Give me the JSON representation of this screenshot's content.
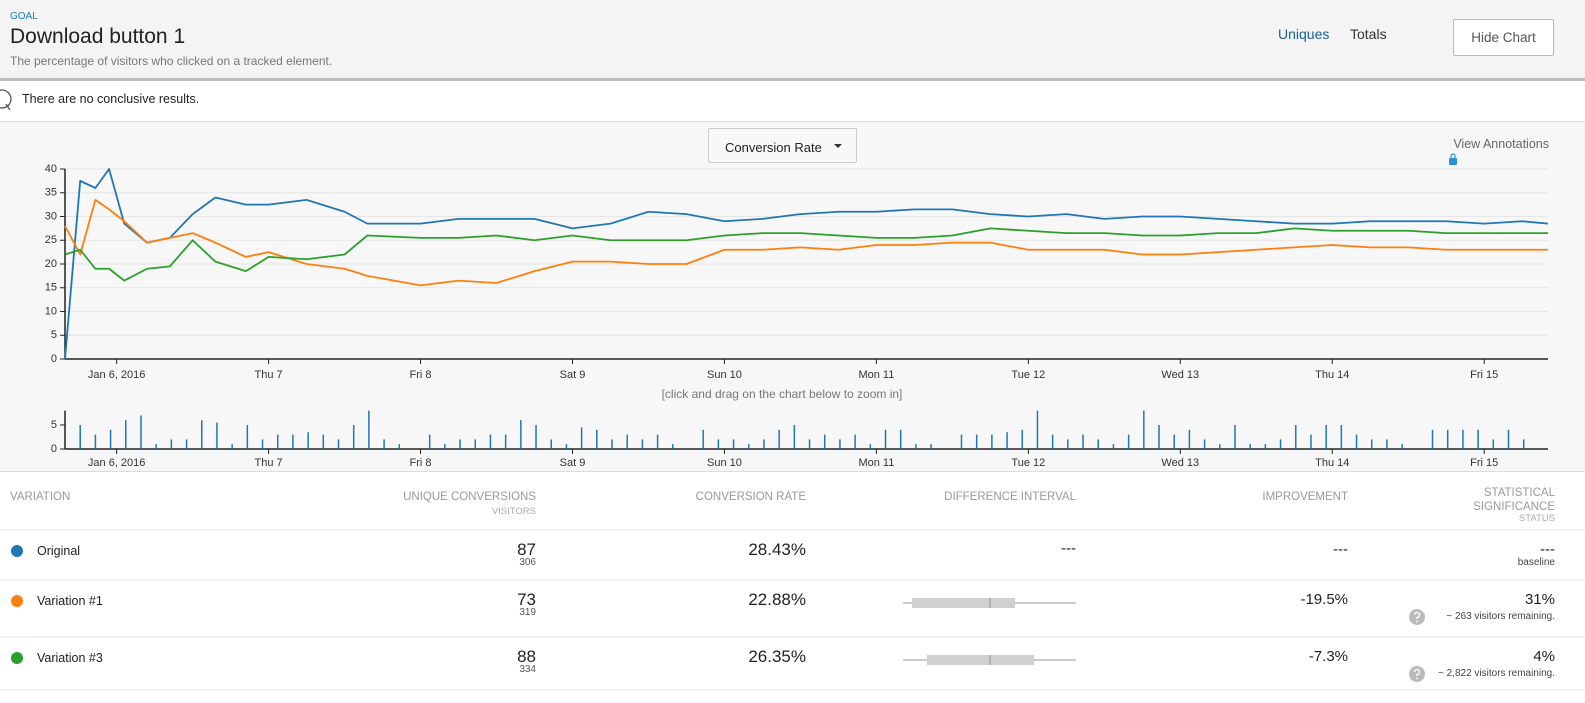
{
  "header": {
    "label": "GOAL",
    "title": "Download button 1",
    "description": "The percentage of visitors who clicked on a tracked element.",
    "tabs": [
      "Uniques",
      "Totals"
    ],
    "button": "Hide Chart"
  },
  "status_message": "There are no conclusive results.",
  "metric_dropdown": "Conversion Rate",
  "annotations_link": "View Annotations",
  "zoom_hint": "[click and drag on the chart below to zoom in]",
  "chart_data": [
    {
      "type": "line",
      "x": [
        -0.34,
        -0.24,
        -0.14,
        -0.05,
        0.05,
        0.2,
        0.35,
        0.5,
        0.65,
        0.85,
        1.0,
        1.25,
        1.5,
        1.65,
        2.0,
        2.25,
        2.5,
        2.75,
        3.0,
        3.25,
        3.5,
        3.75,
        4.0,
        4.25,
        4.5,
        4.75,
        5.0,
        5.25,
        5.5,
        5.75,
        6.0,
        6.25,
        6.5,
        6.75,
        7.0,
        7.25,
        7.5,
        7.75,
        8.0,
        8.25,
        8.5,
        8.75,
        9.0,
        9.25,
        9.42
      ],
      "series": [
        {
          "color": "#1f77b4",
          "values": [
            0,
            37.5,
            36,
            40,
            28.5,
            24.5,
            25.5,
            30.5,
            34,
            32.5,
            32.5,
            33.5,
            31,
            28.5,
            28.5,
            29.5,
            29.5,
            29.5,
            27.5,
            28.5,
            31,
            30.5,
            29,
            29.5,
            30.5,
            31,
            31,
            31.5,
            31.5,
            30.5,
            30,
            30.5,
            29.5,
            30,
            30,
            29.5,
            29,
            28.5,
            28.5,
            29,
            29,
            29,
            28.5,
            29,
            28.5
          ]
        },
        {
          "color": "#ff7f0e",
          "values": [
            28,
            22,
            33.5,
            31.5,
            29,
            24.5,
            25.5,
            26.5,
            24.5,
            21.5,
            22.5,
            20,
            19,
            17.5,
            15.5,
            16.5,
            16,
            18.5,
            20.5,
            20.5,
            20,
            20,
            23,
            23,
            23.5,
            23,
            24,
            24,
            24.5,
            24.5,
            23,
            23,
            23,
            22,
            22,
            22.5,
            23,
            23.5,
            24,
            23.5,
            23.5,
            23,
            23,
            23,
            23
          ]
        },
        {
          "color": "#2ca02c",
          "values": [
            22,
            23,
            19,
            19,
            16.5,
            19,
            19.5,
            25,
            20.5,
            18.5,
            21.5,
            21,
            22,
            26,
            25.5,
            25.5,
            26,
            25,
            26,
            25,
            25,
            25,
            26,
            26.5,
            26.5,
            26,
            25.5,
            25.5,
            26,
            27.5,
            27,
            26.5,
            26.5,
            26,
            26,
            26.5,
            26.5,
            27.5,
            27,
            27,
            27,
            26.5,
            26.5,
            26.5,
            26.5
          ]
        }
      ],
      "xlim": [
        -0.34,
        9.42
      ],
      "xticks": [
        {
          "value": 0,
          "label": "Jan 6, 2016"
        },
        {
          "value": 1,
          "label": "Thu 7"
        },
        {
          "value": 2,
          "label": "Fri 8"
        },
        {
          "value": 3,
          "label": "Sat 9"
        },
        {
          "value": 4,
          "label": "Sun 10"
        },
        {
          "value": 5,
          "label": "Mon 11"
        },
        {
          "value": 6,
          "label": "Tue 12"
        },
        {
          "value": 7,
          "label": "Wed 13"
        },
        {
          "value": 8,
          "label": "Thu 14"
        },
        {
          "value": 9,
          "label": "Fri 15"
        }
      ],
      "ylim": [
        0,
        40
      ],
      "yticks": [
        0,
        5,
        10,
        15,
        20,
        25,
        30,
        35,
        40
      ],
      "grid": true
    },
    {
      "type": "bar",
      "x": [
        -0.24,
        -0.14,
        -0.04,
        0.06,
        0.16,
        0.26,
        0.36,
        0.46,
        0.56,
        0.66,
        0.76,
        0.86,
        0.96,
        1.06,
        1.16,
        1.26,
        1.36,
        1.46,
        1.56,
        1.66,
        1.76,
        1.86,
        1.96,
        2.06,
        2.16,
        2.26,
        2.36,
        2.46,
        2.56,
        2.66,
        2.76,
        2.86,
        2.96,
        3.06,
        3.16,
        3.26,
        3.36,
        3.46,
        3.56,
        3.66,
        3.76,
        3.86,
        3.96,
        4.06,
        4.16,
        4.26,
        4.36,
        4.46,
        4.56,
        4.66,
        4.76,
        4.86,
        4.96,
        5.06,
        5.16,
        5.26,
        5.36,
        5.46,
        5.56,
        5.66,
        5.76,
        5.86,
        5.96,
        6.06,
        6.16,
        6.26,
        6.36,
        6.46,
        6.56,
        6.66,
        6.76,
        6.86,
        6.96,
        7.06,
        7.16,
        7.26,
        7.36,
        7.46,
        7.56,
        7.66,
        7.76,
        7.86,
        7.96,
        8.06,
        8.16,
        8.26,
        8.36,
        8.46,
        8.56,
        8.66,
        8.76,
        8.86,
        8.96,
        9.06,
        9.16,
        9.26
      ],
      "values": [
        5,
        3,
        4,
        6,
        7,
        1,
        2,
        2,
        6,
        5.5,
        1,
        5,
        2,
        3,
        3,
        3.5,
        3,
        2,
        5,
        8,
        2,
        1,
        0,
        3,
        1,
        2,
        2,
        3,
        3,
        6,
        5,
        2,
        1,
        4.5,
        4,
        2,
        3,
        2,
        3,
        1,
        0,
        4,
        2,
        2,
        1,
        2,
        4,
        5,
        2,
        3,
        2,
        3,
        1,
        4,
        4,
        1,
        1,
        0,
        3,
        3,
        3,
        3.5,
        4,
        8,
        3,
        2,
        3,
        2,
        1,
        3,
        8,
        5,
        3,
        4,
        2,
        1,
        5,
        1,
        1,
        2,
        5,
        3,
        5,
        5,
        3,
        2,
        2,
        1,
        0,
        4,
        4,
        4,
        4,
        2,
        4,
        2
      ],
      "color": "#1f77b4",
      "xlim": [
        -0.34,
        9.42
      ],
      "xticks": [
        {
          "value": 0,
          "label": "Jan 6, 2016"
        },
        {
          "value": 1,
          "label": "Thu 7"
        },
        {
          "value": 2,
          "label": "Fri 8"
        },
        {
          "value": 3,
          "label": "Sat 9"
        },
        {
          "value": 4,
          "label": "Sun 10"
        },
        {
          "value": 5,
          "label": "Mon 11"
        },
        {
          "value": 6,
          "label": "Tue 12"
        },
        {
          "value": 7,
          "label": "Wed 13"
        },
        {
          "value": 8,
          "label": "Thu 14"
        },
        {
          "value": 9,
          "label": "Fri 15"
        }
      ],
      "ylim": [
        0,
        8
      ],
      "yticks": [
        0,
        5
      ],
      "grid": false
    }
  ],
  "table": {
    "columns": [
      "VARIATION",
      "UNIQUE CONVERSIONS",
      "CONVERSION RATE",
      "DIFFERENCE INTERVAL",
      "IMPROVEMENT",
      "STATISTICAL SIGNIFICANCE"
    ],
    "subheaders": {
      "unique_conversions": "VISITORS",
      "statistical_significance": "STATUS"
    },
    "rows": [
      {
        "color": "#1f77b4",
        "variation": "Original",
        "conversions": 87,
        "visitors": 306,
        "conversion_rate": "28.43%",
        "difference_interval": "---",
        "improvement": "---",
        "significance": "---",
        "status": "baseline"
      },
      {
        "color": "#ff7f0e",
        "variation": "Variation #1",
        "conversions": 73,
        "visitors": 319,
        "conversion_rate": "22.88%",
        "improvement": "-19.5%",
        "significance": "31%",
        "status": "~ 263 visitors remaining."
      },
      {
        "color": "#2ca02c",
        "variation": "Variation #3",
        "conversions": 88,
        "visitors": 334,
        "conversion_rate": "26.35%",
        "improvement": "-7.3%",
        "significance": "4%",
        "status": "~ 2,822 visitors remaining."
      }
    ]
  }
}
